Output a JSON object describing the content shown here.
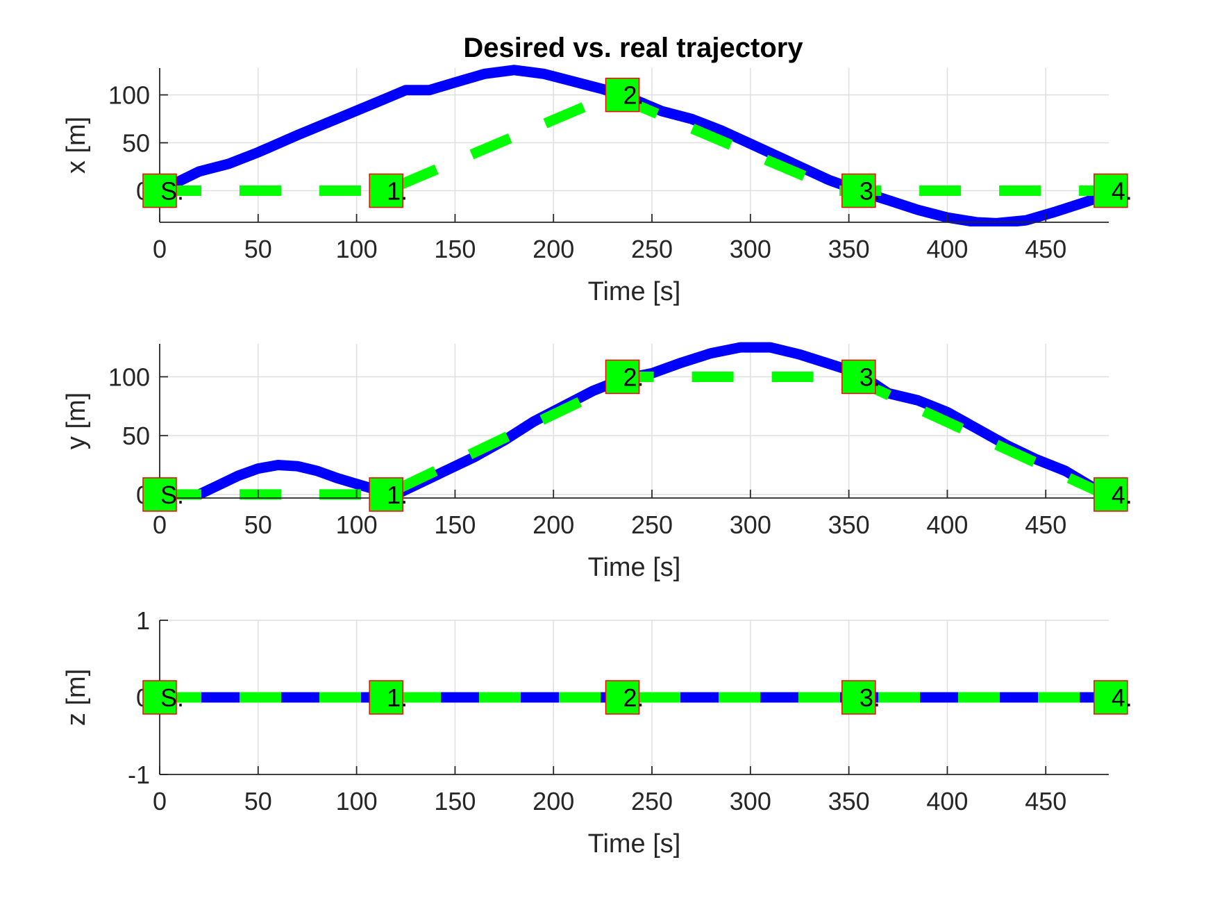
{
  "chart_data": [
    {
      "type": "line",
      "id": "x",
      "title": "Desired vs. real trajectory",
      "xlabel": "Time [s]",
      "ylabel": "x [m]",
      "xlim": [
        0,
        482
      ],
      "ylim": [
        -33,
        128
      ],
      "xticks": [
        0,
        50,
        100,
        150,
        200,
        250,
        300,
        350,
        400,
        450
      ],
      "yticks": [
        0,
        50,
        100
      ],
      "grid": true,
      "series": [
        {
          "style": "solid",
          "color": "#0000ff",
          "x": [
            0,
            10,
            20,
            35,
            50,
            70,
            90,
            110,
            125,
            137,
            150,
            165,
            180,
            195,
            210,
            225,
            240,
            255,
            270,
            285,
            300,
            320,
            340,
            355,
            370,
            385,
            400,
            415,
            425,
            440,
            455,
            470,
            480
          ],
          "y": [
            0,
            10,
            20,
            28,
            40,
            58,
            75,
            92,
            105,
            105,
            113,
            122,
            126,
            122,
            114,
            106,
            96,
            83,
            75,
            63,
            49,
            30,
            11,
            0,
            -10,
            -20,
            -28,
            -33,
            -34,
            -31,
            -22,
            -12,
            -5
          ]
        },
        {
          "style": "dashed",
          "color": "#00ff00",
          "x": [
            0,
            115,
            230,
            345,
            480
          ],
          "y": [
            0,
            0,
            100,
            0,
            0
          ]
        }
      ],
      "markers": [
        {
          "x": 0,
          "y": 0,
          "label": "S."
        },
        {
          "x": 115,
          "y": 0,
          "label": "1."
        },
        {
          "x": 235,
          "y": 100,
          "label": "2."
        },
        {
          "x": 355,
          "y": 0,
          "label": "3."
        },
        {
          "x": 483,
          "y": 0,
          "label": "4."
        }
      ]
    },
    {
      "type": "line",
      "id": "y",
      "xlabel": "Time [s]",
      "ylabel": "y [m]",
      "xlim": [
        0,
        482
      ],
      "ylim": [
        -3,
        128
      ],
      "xticks": [
        0,
        50,
        100,
        150,
        200,
        250,
        300,
        350,
        400,
        450
      ],
      "yticks": [
        0,
        50,
        100
      ],
      "grid": true,
      "series": [
        {
          "style": "solid",
          "color": "#0000ff",
          "x": [
            20,
            30,
            40,
            50,
            60,
            70,
            80,
            90,
            100,
            110,
            120,
            130,
            145,
            160,
            175,
            190,
            205,
            220,
            235,
            250,
            265,
            280,
            295,
            310,
            325,
            340,
            355,
            370,
            385,
            400,
            415,
            430,
            445,
            460,
            480
          ],
          "y": [
            0,
            8,
            16,
            22,
            25,
            24,
            20,
            14,
            9,
            4,
            0,
            8,
            20,
            32,
            46,
            62,
            75,
            88,
            98,
            103,
            112,
            120,
            125,
            125,
            119,
            111,
            103,
            86,
            80,
            70,
            56,
            42,
            30,
            20,
            0
          ],
          "clip_before": 20
        },
        {
          "style": "dashed",
          "color": "#00ff00",
          "x": [
            0,
            115,
            240,
            350,
            480
          ],
          "y": [
            0,
            0,
            100,
            100,
            0
          ]
        }
      ],
      "markers": [
        {
          "x": 0,
          "y": 0,
          "label": "S."
        },
        {
          "x": 115,
          "y": 0,
          "label": "1."
        },
        {
          "x": 235,
          "y": 100,
          "label": "2."
        },
        {
          "x": 355,
          "y": 100,
          "label": "3."
        },
        {
          "x": 483,
          "y": 0,
          "label": "4."
        }
      ]
    },
    {
      "type": "line",
      "id": "z",
      "xlabel": "Time [s]",
      "ylabel": "z [m]",
      "xlim": [
        0,
        482
      ],
      "ylim": [
        -1,
        1
      ],
      "xticks": [
        0,
        50,
        100,
        150,
        200,
        250,
        300,
        350,
        400,
        450
      ],
      "yticks": [
        -1,
        0,
        1
      ],
      "grid": true,
      "series": [
        {
          "style": "solid",
          "color": "#0000ff",
          "x": [
            0,
            480
          ],
          "y": [
            0,
            0
          ]
        },
        {
          "style": "dashed",
          "color": "#00ff00",
          "x": [
            0,
            480
          ],
          "y": [
            0,
            0
          ]
        }
      ],
      "markers": [
        {
          "x": 0,
          "y": 0,
          "label": "S."
        },
        {
          "x": 115,
          "y": 0,
          "label": "1."
        },
        {
          "x": 235,
          "y": 0,
          "label": "2."
        },
        {
          "x": 355,
          "y": 0,
          "label": "3."
        },
        {
          "x": 483,
          "y": 0,
          "label": "4."
        }
      ]
    }
  ],
  "colors": {
    "real": "#0000ff",
    "desired": "#00ff00",
    "marker_fill": "#00ff00",
    "marker_edge": "#ff0000"
  }
}
